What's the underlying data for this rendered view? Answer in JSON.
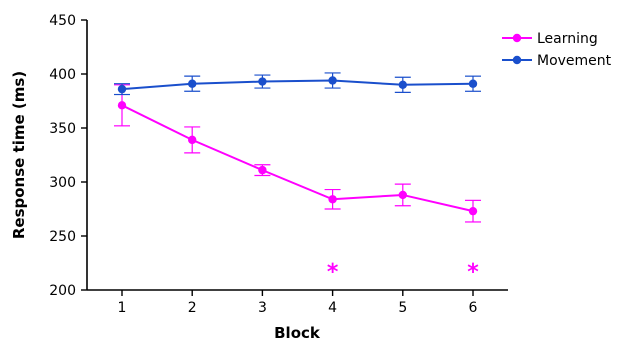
{
  "chart_data": {
    "type": "line",
    "title": "",
    "xlabel": "Block",
    "ylabel": "Response time (ms)",
    "x": [
      1,
      2,
      3,
      4,
      5,
      6
    ],
    "ylim": [
      200,
      450
    ],
    "yticks": [
      200,
      250,
      300,
      350,
      400,
      450
    ],
    "grid": false,
    "legend_position": "top-right",
    "series": [
      {
        "name": "Learning",
        "color": "#ff00ff",
        "values": [
          371,
          339,
          311,
          284,
          288,
          273
        ],
        "error": [
          19,
          12,
          5,
          9,
          10,
          10
        ]
      },
      {
        "name": "Movement",
        "color": "#1a4fcc",
        "values": [
          386,
          391,
          393,
          394,
          390,
          391
        ],
        "error": [
          5,
          7,
          6,
          7,
          7,
          7
        ]
      }
    ],
    "annotations": [
      {
        "text": "*",
        "x": 4,
        "y": 225,
        "color": "#ff00ff"
      },
      {
        "text": "*",
        "x": 6,
        "y": 225,
        "color": "#ff00ff"
      }
    ]
  }
}
